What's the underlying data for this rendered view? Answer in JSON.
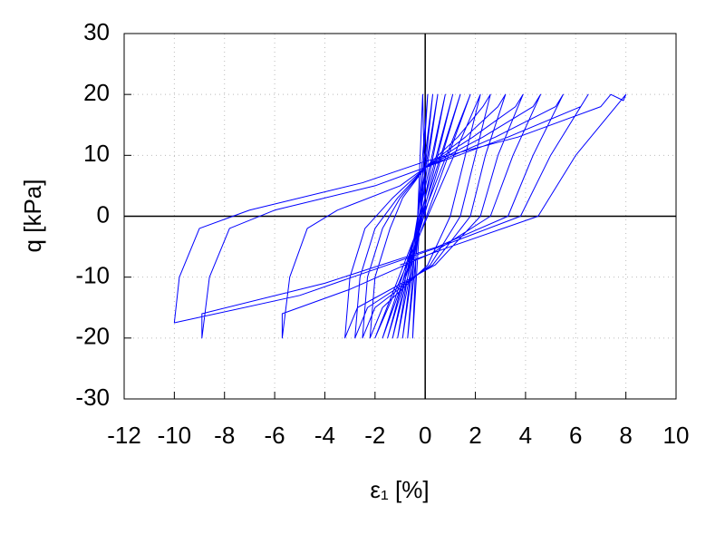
{
  "chart_data": {
    "type": "line",
    "x_label": "ε₁ [%]",
    "y_label": "q [kPa]",
    "color": "#0000ff",
    "grid": true,
    "xlim": [
      -12,
      10
    ],
    "ylim": [
      -30,
      30
    ],
    "xticks": [
      -12,
      -10,
      -8,
      -6,
      -4,
      -2,
      0,
      2,
      4,
      6,
      8,
      10
    ],
    "yticks": [
      -30,
      -20,
      -10,
      0,
      10,
      20,
      30
    ],
    "x": [
      0,
      -0.1,
      -0.5,
      0.1,
      -0.7,
      0.3,
      -0.9,
      0.5,
      -1.1,
      0.8,
      -1.3,
      1.1,
      -1.5,
      1.4,
      -1.7,
      1.8,
      -2.0,
      2.2,
      1.6,
      1.0,
      0.1,
      -1.7,
      -2.2,
      -2.0,
      -1.4,
      -0.9,
      0,
      1.3,
      2.3,
      2.6,
      2.0,
      1.4,
      0.2,
      -2.0,
      -2.5,
      -2.3,
      -1.7,
      -1.0,
      0,
      1.6,
      2.9,
      3.2,
      2.4,
      1.8,
      0.3,
      -2.3,
      -2.8,
      -2.6,
      -2.0,
      -1.1,
      0,
      1.9,
      3.6,
      3.9,
      2.9,
      2.2,
      0.4,
      -2.7,
      -3.2,
      -3.0,
      -2.4,
      -1.3,
      0,
      2.3,
      4.3,
      4.6,
      3.5,
      2.6,
      0.3,
      -3.0,
      -5.7,
      -5.7,
      -5.4,
      -4.7,
      -3.5,
      -1,
      0,
      2.8,
      5.2,
      5.5,
      4.3,
      3.3,
      0.5,
      -4,
      -8.9,
      -8.9,
      -8.6,
      -7.8,
      -6,
      -2,
      0,
      3.3,
      6.2,
      6.5,
      5,
      3.8,
      0.6,
      -5,
      -10,
      -9.8,
      -9,
      -7,
      -2.5,
      0,
      3.7,
      7,
      7.4,
      7.9,
      8.0,
      6.0,
      4.5,
      1,
      -1
    ],
    "values": [
      0,
      20,
      -20,
      20,
      -20,
      20,
      -20,
      20,
      -20,
      20,
      -20,
      20,
      -20,
      20,
      -20,
      20,
      -20,
      20,
      10,
      0,
      -8,
      -15,
      -20,
      -10,
      -2,
      3,
      8,
      13,
      18,
      20,
      10,
      0,
      -8,
      -15,
      -20,
      -10,
      -2,
      3,
      8,
      13,
      18,
      20,
      10,
      0,
      -8,
      -15,
      -20,
      -10,
      -2,
      3,
      8,
      13,
      18,
      20,
      10,
      0,
      -8,
      -15,
      -20,
      -10,
      -2,
      3,
      8,
      13,
      18,
      20,
      10,
      0,
      -6,
      -12,
      -16,
      -20,
      -10,
      -2,
      1,
      5,
      8,
      13,
      18,
      20,
      10,
      0,
      -5,
      -11,
      -16,
      -20,
      -10,
      -2,
      1,
      5,
      8,
      13,
      18,
      20,
      10,
      0,
      -5,
      -13,
      -17.5,
      -10,
      -2,
      1,
      5.5,
      9,
      13,
      18,
      20,
      19,
      20,
      10,
      0,
      -5,
      -8
    ]
  }
}
